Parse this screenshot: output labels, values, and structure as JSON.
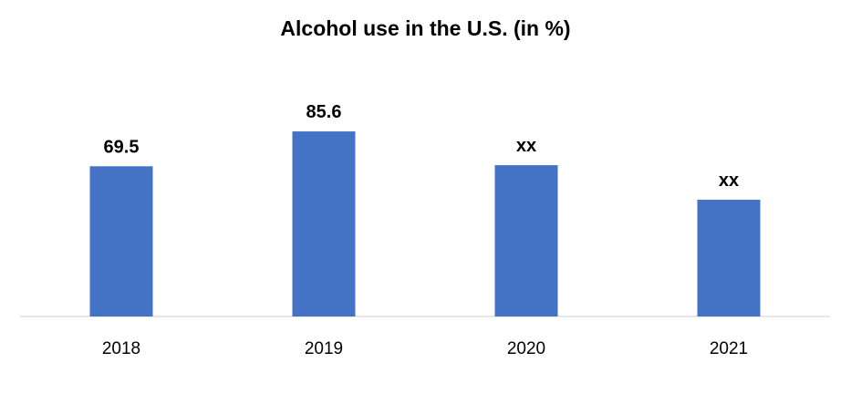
{
  "chart_data": {
    "type": "bar",
    "title": "Alcohol use in the U.S. (in %)",
    "xlabel": "",
    "ylabel": "",
    "categories": [
      "2018",
      "2019",
      "2020",
      "2021"
    ],
    "series": [
      {
        "values": [
          69.5,
          85.6,
          70.0,
          54.0
        ],
        "data_labels": [
          "69.5",
          "85.6",
          "xx",
          "xx"
        ]
      }
    ],
    "ylim": [
      0,
      100
    ],
    "grid": false,
    "legend": "none",
    "bar_color": "#4472C4",
    "axis_color": "#D9D9D9"
  }
}
